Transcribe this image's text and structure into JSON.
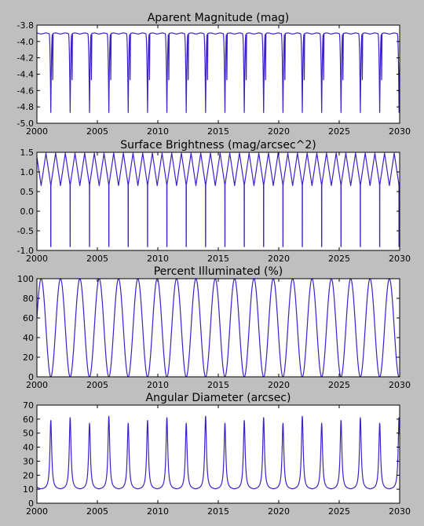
{
  "chart_data": [
    {
      "type": "line",
      "title": "Aparent Magnitude (mag)",
      "xlabel": "",
      "ylabel": "",
      "xlim": [
        2000,
        2030
      ],
      "ylim": [
        -5.0,
        -3.8
      ],
      "y_inverted": false,
      "xticks": [
        "2000",
        "2005",
        "2010",
        "2015",
        "2020",
        "2025",
        "2030"
      ],
      "yticks": [
        "-3.8",
        "-4.0",
        "-4.2",
        "-4.4",
        "-4.6",
        "-4.8",
        "-5.0"
      ],
      "line_color": "#3a22c8",
      "grid": false,
      "series": [
        {
          "values_description_only_in_script": true,
          "period_years": 1.6,
          "baseline": -3.86,
          "dip_min": -4.9,
          "first_dip_year": 2001.15
        }
      ]
    },
    {
      "type": "line",
      "title": "Surface Brightness (mag/arcsec^2)",
      "xlabel": "",
      "ylabel": "",
      "xlim": [
        2000,
        2030
      ],
      "ylim": [
        -1.0,
        1.5
      ],
      "xticks": [
        "2000",
        "2005",
        "2010",
        "2015",
        "2020",
        "2025",
        "2030"
      ],
      "yticks": [
        "1.5",
        "1.0",
        "0.5",
        "0.0",
        "-0.5",
        "-1.0"
      ],
      "line_color": "#3a22c8",
      "grid": false,
      "series": [
        {
          "period_years": 1.6,
          "max": 1.48,
          "min": 0.65,
          "spike_min": -0.9,
          "first_dip_year": 2001.15
        }
      ]
    },
    {
      "type": "line",
      "title": "Percent Illuminated (%)",
      "xlabel": "",
      "ylabel": "",
      "xlim": [
        2000,
        2030
      ],
      "ylim": [
        0,
        100
      ],
      "xticks": [
        "2000",
        "2005",
        "2010",
        "2015",
        "2020",
        "2025",
        "2030"
      ],
      "yticks": [
        "100",
        "80",
        "60",
        "40",
        "20",
        "0"
      ],
      "line_color": "#3a22c8",
      "grid": false,
      "series": [
        {
          "period_years": 1.6,
          "max": 100,
          "min": 0,
          "first_dip_year": 2001.15
        }
      ]
    },
    {
      "type": "line",
      "title": "Angular Diameter (arcsec)",
      "xlabel": "",
      "ylabel": "",
      "xlim": [
        2000,
        2030
      ],
      "ylim": [
        0,
        70
      ],
      "xticks": [
        "2000",
        "2005",
        "2010",
        "2015",
        "2020",
        "2025",
        "2030"
      ],
      "yticks": [
        "70",
        "60",
        "50",
        "40",
        "30",
        "20",
        "10",
        "0"
      ],
      "line_color": "#3a22c8",
      "grid": false,
      "series": [
        {
          "period_years": 1.6,
          "baseline": 9.7,
          "peak_values": [
            59,
            61,
            57,
            62,
            57,
            59,
            61,
            57,
            62,
            57,
            59,
            61,
            57,
            62,
            57,
            59,
            61,
            57,
            61
          ],
          "first_dip_year": 2001.15
        }
      ]
    }
  ]
}
